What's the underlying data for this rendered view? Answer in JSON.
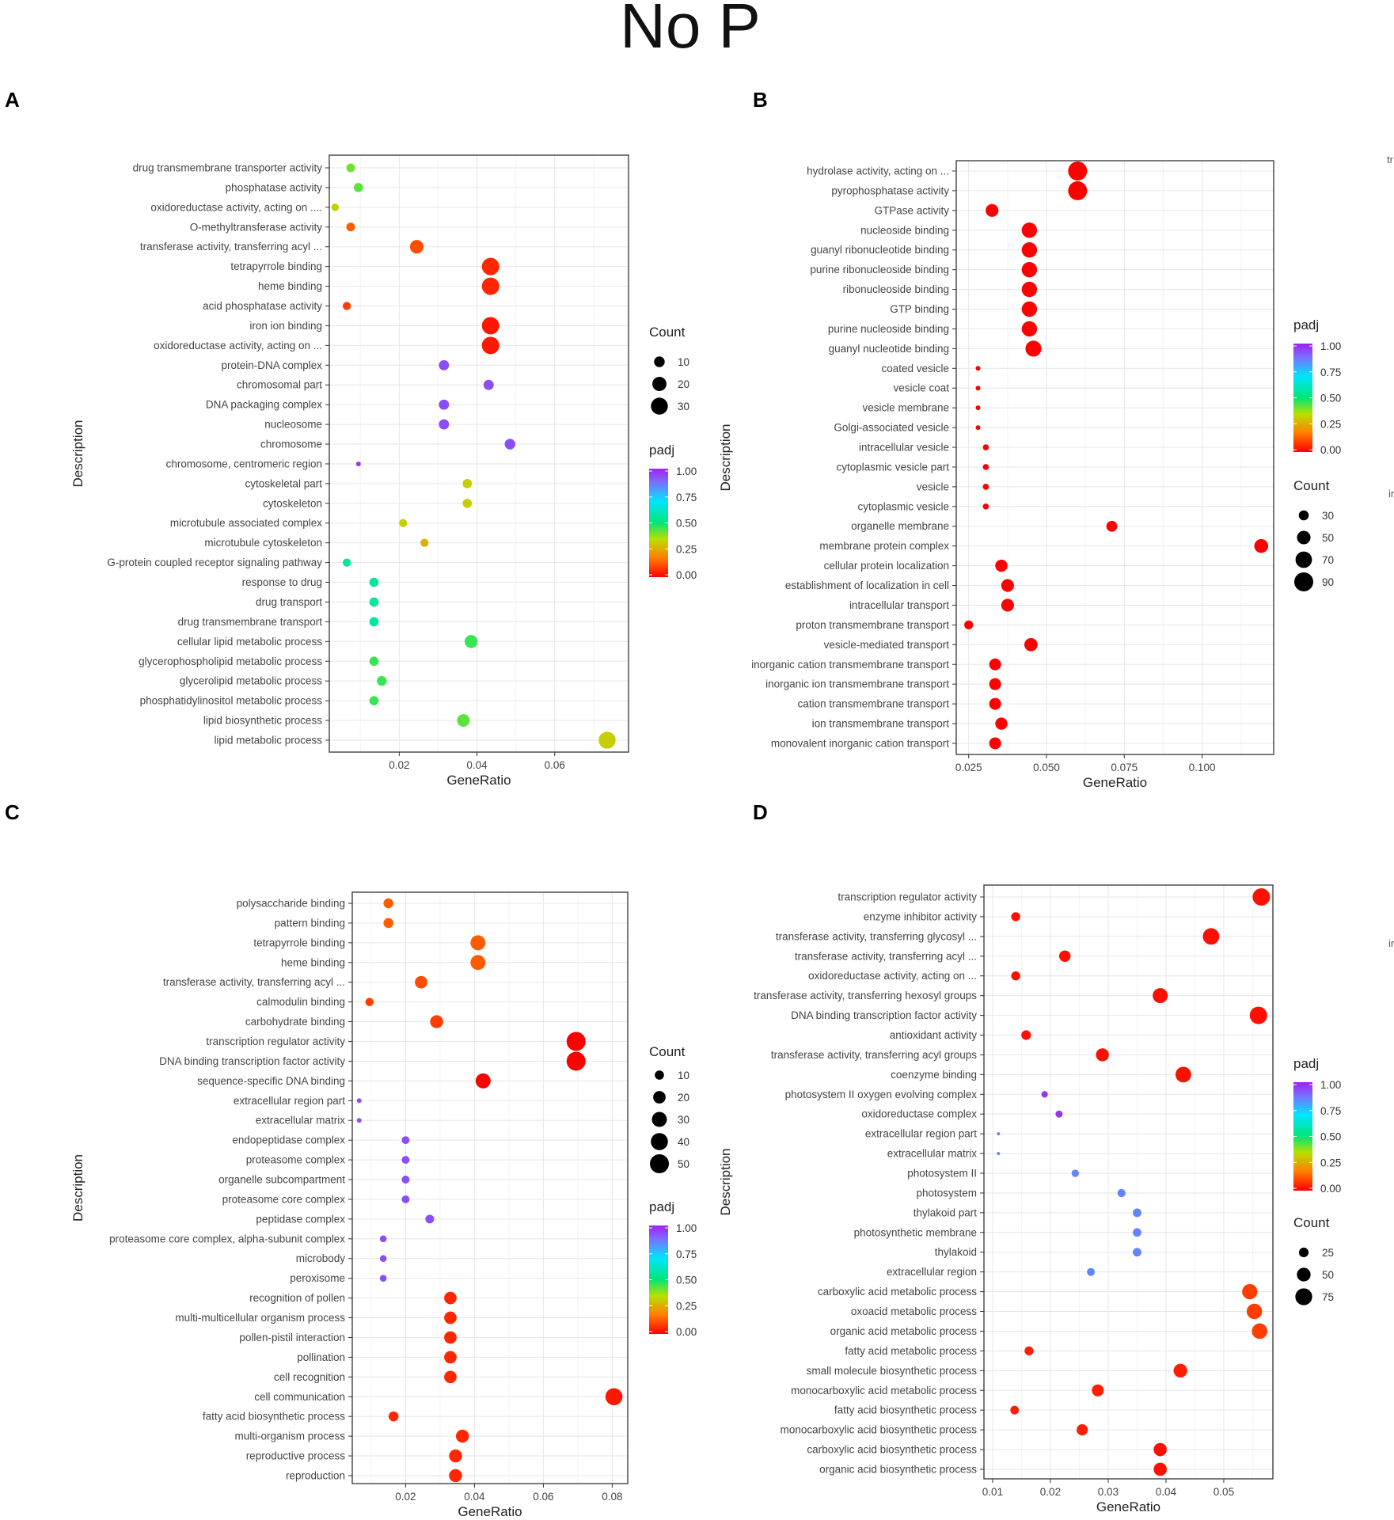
{
  "figure_title": "No P",
  "colors": {
    "scale": [
      "#ff0000",
      "#ff8000",
      "#b8e000",
      "#00e676",
      "#00e5ff",
      "#7c6cff",
      "#a020f0"
    ]
  },
  "clipped_text": [
    "tr",
    "ir",
    "ir"
  ],
  "chart_data": [
    {
      "panel": "A",
      "type": "scatter",
      "xlabel": "GeneRatio",
      "ylabel": "Description",
      "xlim": [
        0.002,
        0.079
      ],
      "xticks": [
        0.02,
        0.04,
        0.06
      ],
      "xtick_labels": [
        "0.02",
        "0.04",
        "0.06"
      ],
      "size_legend": {
        "title": "Count",
        "values": [
          10,
          20,
          30
        ],
        "labels": [
          "10",
          "20",
          "30"
        ]
      },
      "color_legend": {
        "title": "padj",
        "labels": [
          "1.00",
          "0.75",
          "0.50",
          "0.25",
          "0.00"
        ]
      },
      "points": [
        {
          "term": "drug transmembrane transporter activity",
          "x": 0.0075,
          "count": 6,
          "padj": 0.4
        },
        {
          "term": "phosphatase activity",
          "x": 0.0095,
          "count": 7,
          "padj": 0.42
        },
        {
          "term": "oxidoreductase activity, acting on ....",
          "x": 0.0035,
          "count": 4,
          "padj": 0.3
        },
        {
          "term": "O-methyltransferase activity",
          "x": 0.0075,
          "count": 6,
          "padj": 0.12
        },
        {
          "term": "transferase activity, transferring acyl ...",
          "x": 0.0245,
          "count": 18,
          "padj": 0.1
        },
        {
          "term": "tetrapyrrole binding",
          "x": 0.0435,
          "count": 32,
          "padj": 0.05
        },
        {
          "term": "heme binding",
          "x": 0.0435,
          "count": 32,
          "padj": 0.05
        },
        {
          "term": "acid phosphatase activity",
          "x": 0.0065,
          "count": 5,
          "padj": 0.08
        },
        {
          "term": "iron ion binding",
          "x": 0.0435,
          "count": 32,
          "padj": 0.03
        },
        {
          "term": "oxidoreductase activity, acting on ...",
          "x": 0.0435,
          "count": 32,
          "padj": 0.03
        },
        {
          "term": "protein-DNA complex",
          "x": 0.0315,
          "count": 9,
          "padj": 0.9
        },
        {
          "term": "chromosomal part",
          "x": 0.043,
          "count": 9,
          "padj": 0.9
        },
        {
          "term": "DNA packaging complex",
          "x": 0.0315,
          "count": 9,
          "padj": 0.9
        },
        {
          "term": "nucleosome",
          "x": 0.0315,
          "count": 9,
          "padj": 0.9
        },
        {
          "term": "chromosome",
          "x": 0.0485,
          "count": 10,
          "padj": 0.9
        },
        {
          "term": "chromosome, centromeric region",
          "x": 0.0095,
          "count": 1,
          "padj": 0.95
        },
        {
          "term": "cytoskeletal part",
          "x": 0.0375,
          "count": 7,
          "padj": 0.3
        },
        {
          "term": "cytoskeleton",
          "x": 0.0375,
          "count": 7,
          "padj": 0.3
        },
        {
          "term": "microtubule associated complex",
          "x": 0.021,
          "count": 5,
          "padj": 0.3
        },
        {
          "term": "microtubule cytoskeleton",
          "x": 0.0265,
          "count": 5,
          "padj": 0.25
        },
        {
          "term": "G-protein coupled receptor signaling pathway",
          "x": 0.0065,
          "count": 5,
          "padj": 0.55
        },
        {
          "term": "response to drug",
          "x": 0.0135,
          "count": 7,
          "padj": 0.55
        },
        {
          "term": "drug transport",
          "x": 0.0135,
          "count": 7,
          "padj": 0.55
        },
        {
          "term": "drug transmembrane transport",
          "x": 0.0135,
          "count": 7,
          "padj": 0.55
        },
        {
          "term": "cellular lipid metabolic process",
          "x": 0.0385,
          "count": 16,
          "padj": 0.45
        },
        {
          "term": "glycerophospholipid metabolic process",
          "x": 0.0135,
          "count": 7,
          "padj": 0.45
        },
        {
          "term": "glycerolipid metabolic process",
          "x": 0.0155,
          "count": 8,
          "padj": 0.45
        },
        {
          "term": "phosphatidylinositol metabolic process",
          "x": 0.0135,
          "count": 7,
          "padj": 0.45
        },
        {
          "term": "lipid biosynthetic process",
          "x": 0.0365,
          "count": 15,
          "padj": 0.42
        },
        {
          "term": "lipid metabolic process",
          "x": 0.0735,
          "count": 30,
          "padj": 0.3
        }
      ]
    },
    {
      "panel": "B",
      "type": "scatter",
      "xlabel": "GeneRatio",
      "ylabel": "Description",
      "xlim": [
        0.021,
        0.123
      ],
      "xticks": [
        0.025,
        0.05,
        0.075,
        0.1
      ],
      "xtick_labels": [
        "0.025",
        "0.050",
        "0.075",
        "0.100"
      ],
      "color_legend": {
        "title": "padj",
        "labels": [
          "1.00",
          "0.75",
          "0.50",
          "0.25",
          "0.00"
        ]
      },
      "size_legend": {
        "title": "Count",
        "values": [
          30,
          50,
          70,
          90
        ],
        "labels": [
          "30",
          "50",
          "70",
          "90"
        ]
      },
      "points": [
        {
          "term": "hydrolase activity, acting on ...",
          "x": 0.06,
          "count": 90,
          "padj": 0.0
        },
        {
          "term": "pyrophosphatase activity",
          "x": 0.06,
          "count": 90,
          "padj": 0.0
        },
        {
          "term": "GTPase activity",
          "x": 0.0325,
          "count": 45,
          "padj": 0.0
        },
        {
          "term": "nucleoside binding",
          "x": 0.0445,
          "count": 62,
          "padj": 0.0
        },
        {
          "term": "guanyl ribonucleotide binding",
          "x": 0.0445,
          "count": 62,
          "padj": 0.0
        },
        {
          "term": "purine ribonucleoside binding",
          "x": 0.0445,
          "count": 62,
          "padj": 0.0
        },
        {
          "term": "ribonucleoside binding",
          "x": 0.0445,
          "count": 62,
          "padj": 0.0
        },
        {
          "term": "GTP binding",
          "x": 0.0445,
          "count": 62,
          "padj": 0.0
        },
        {
          "term": "purine nucleoside binding",
          "x": 0.0445,
          "count": 62,
          "padj": 0.0
        },
        {
          "term": "guanyl nucleotide binding",
          "x": 0.0458,
          "count": 66,
          "padj": 0.0
        },
        {
          "term": "coated vesicle",
          "x": 0.028,
          "count": 10,
          "padj": 0.0
        },
        {
          "term": "vesicle coat",
          "x": 0.028,
          "count": 10,
          "padj": 0.0
        },
        {
          "term": "vesicle membrane",
          "x": 0.028,
          "count": 10,
          "padj": 0.0
        },
        {
          "term": "Golgi-associated vesicle",
          "x": 0.028,
          "count": 10,
          "padj": 0.0
        },
        {
          "term": "intracellular vesicle",
          "x": 0.0305,
          "count": 14,
          "padj": 0.0
        },
        {
          "term": "cytoplasmic vesicle part",
          "x": 0.0305,
          "count": 14,
          "padj": 0.0
        },
        {
          "term": "vesicle",
          "x": 0.0305,
          "count": 14,
          "padj": 0.0
        },
        {
          "term": "cytoplasmic vesicle",
          "x": 0.0305,
          "count": 14,
          "padj": 0.0
        },
        {
          "term": "organelle membrane",
          "x": 0.071,
          "count": 35,
          "padj": 0.0
        },
        {
          "term": "membrane protein complex",
          "x": 0.119,
          "count": 52,
          "padj": 0.0
        },
        {
          "term": "cellular protein localization",
          "x": 0.0355,
          "count": 42,
          "padj": 0.0
        },
        {
          "term": "establishment of localization in cell",
          "x": 0.0375,
          "count": 45,
          "padj": 0.0
        },
        {
          "term": "intracellular transport",
          "x": 0.0375,
          "count": 45,
          "padj": 0.0
        },
        {
          "term": "proton transmembrane transport",
          "x": 0.025,
          "count": 25,
          "padj": 0.0
        },
        {
          "term": "vesicle-mediated transport",
          "x": 0.045,
          "count": 48,
          "padj": 0.0
        },
        {
          "term": "inorganic cation transmembrane transport",
          "x": 0.0335,
          "count": 40,
          "padj": 0.0
        },
        {
          "term": "inorganic ion transmembrane transport",
          "x": 0.0335,
          "count": 40,
          "padj": 0.0
        },
        {
          "term": "cation transmembrane transport",
          "x": 0.0335,
          "count": 40,
          "padj": 0.0
        },
        {
          "term": "ion transmembrane transport",
          "x": 0.0355,
          "count": 42,
          "padj": 0.0
        },
        {
          "term": "monovalent inorganic cation transport",
          "x": 0.0335,
          "count": 40,
          "padj": 0.0
        }
      ]
    },
    {
      "panel": "C",
      "type": "scatter",
      "xlabel": "GeneRatio",
      "ylabel": "Description",
      "xlim": [
        0.0045,
        0.0845
      ],
      "xticks": [
        0.02,
        0.04,
        0.06,
        0.08
      ],
      "xtick_labels": [
        "0.02",
        "0.04",
        "0.06",
        "0.08"
      ],
      "size_legend": {
        "title": "Count",
        "values": [
          10,
          20,
          30,
          40,
          50
        ],
        "labels": [
          "10",
          "20",
          "30",
          "40",
          "50"
        ]
      },
      "color_legend": {
        "title": "padj",
        "labels": [
          "1.00",
          "0.75",
          "0.50",
          "0.25",
          "0.00"
        ]
      },
      "points": [
        {
          "term": "polysaccharide binding",
          "x": 0.015,
          "count": 12,
          "padj": 0.12
        },
        {
          "term": "pattern binding",
          "x": 0.015,
          "count": 12,
          "padj": 0.12
        },
        {
          "term": "tetrapyrrole binding",
          "x": 0.041,
          "count": 30,
          "padj": 0.12
        },
        {
          "term": "heme binding",
          "x": 0.041,
          "count": 30,
          "padj": 0.12
        },
        {
          "term": "transferase activity, transferring acyl ...",
          "x": 0.0245,
          "count": 20,
          "padj": 0.1
        },
        {
          "term": "calmodulin binding",
          "x": 0.0095,
          "count": 8,
          "padj": 0.08
        },
        {
          "term": "carbohydrate binding",
          "x": 0.029,
          "count": 22,
          "padj": 0.08
        },
        {
          "term": "transcription regulator activity",
          "x": 0.0695,
          "count": 50,
          "padj": 0.0
        },
        {
          "term": "DNA binding transcription factor activity",
          "x": 0.0695,
          "count": 50,
          "padj": 0.0
        },
        {
          "term": "sequence-specific DNA binding",
          "x": 0.0425,
          "count": 30,
          "padj": 0.0
        },
        {
          "term": "extracellular region part",
          "x": 0.0065,
          "count": 2,
          "padj": 0.9
        },
        {
          "term": "extracellular matrix",
          "x": 0.0065,
          "count": 2,
          "padj": 0.9
        },
        {
          "term": "endopeptidase complex",
          "x": 0.02,
          "count": 7,
          "padj": 0.9
        },
        {
          "term": "proteasome complex",
          "x": 0.02,
          "count": 7,
          "padj": 0.9
        },
        {
          "term": "organelle subcompartment",
          "x": 0.02,
          "count": 7,
          "padj": 0.9
        },
        {
          "term": "proteasome core complex",
          "x": 0.02,
          "count": 7,
          "padj": 0.9
        },
        {
          "term": "peptidase complex",
          "x": 0.027,
          "count": 9,
          "padj": 0.9
        },
        {
          "term": "proteasome core complex, alpha-subunit complex",
          "x": 0.0135,
          "count": 5,
          "padj": 0.9
        },
        {
          "term": "microbody",
          "x": 0.0135,
          "count": 5,
          "padj": 0.9
        },
        {
          "term": "peroxisome",
          "x": 0.0135,
          "count": 5,
          "padj": 0.9
        },
        {
          "term": "recognition of pollen",
          "x": 0.033,
          "count": 20,
          "padj": 0.05
        },
        {
          "term": "multi-multicellular organism process",
          "x": 0.033,
          "count": 20,
          "padj": 0.05
        },
        {
          "term": "pollen-pistil interaction",
          "x": 0.033,
          "count": 20,
          "padj": 0.05
        },
        {
          "term": "pollination",
          "x": 0.033,
          "count": 20,
          "padj": 0.05
        },
        {
          "term": "cell recognition",
          "x": 0.033,
          "count": 20,
          "padj": 0.05
        },
        {
          "term": "cell communication",
          "x": 0.0805,
          "count": 40,
          "padj": 0.03
        },
        {
          "term": "fatty acid biosynthetic process",
          "x": 0.0165,
          "count": 12,
          "padj": 0.05
        },
        {
          "term": "multi-organism process",
          "x": 0.0365,
          "count": 22,
          "padj": 0.05
        },
        {
          "term": "reproductive process",
          "x": 0.0345,
          "count": 22,
          "padj": 0.05
        },
        {
          "term": "reproduction",
          "x": 0.0345,
          "count": 22,
          "padj": 0.05
        }
      ]
    },
    {
      "panel": "D",
      "type": "scatter",
      "xlabel": "GeneRatio",
      "ylabel": "Description",
      "xlim": [
        0.0085,
        0.0585
      ],
      "xticks": [
        0.01,
        0.02,
        0.03,
        0.04,
        0.05
      ],
      "xtick_labels": [
        "0.01",
        "0.02",
        "0.03",
        "0.04",
        "0.05"
      ],
      "color_legend": {
        "title": "padj",
        "labels": [
          "1.00",
          "0.75",
          "0.50",
          "0.25",
          "0.00"
        ]
      },
      "size_legend": {
        "title": "Count",
        "values": [
          25,
          50,
          75
        ],
        "labels": [
          "25",
          "50",
          "75"
        ]
      },
      "points": [
        {
          "term": "transcription regulator activity",
          "x": 0.0565,
          "count": 80,
          "padj": 0.02
        },
        {
          "term": "enzyme inhibitor activity",
          "x": 0.014,
          "count": 22,
          "padj": 0.02
        },
        {
          "term": "transferase activity, transferring glycosyl ...",
          "x": 0.0478,
          "count": 72,
          "padj": 0.02
        },
        {
          "term": "transferase activity, transferring acyl ...",
          "x": 0.0225,
          "count": 35,
          "padj": 0.02
        },
        {
          "term": "oxidoreductase activity, acting on ...",
          "x": 0.014,
          "count": 22,
          "padj": 0.02
        },
        {
          "term": "transferase activity, transferring hexosyl groups",
          "x": 0.039,
          "count": 60,
          "padj": 0.02
        },
        {
          "term": "DNA binding transcription factor activity",
          "x": 0.056,
          "count": 80,
          "padj": 0.02
        },
        {
          "term": "antioxidant activity",
          "x": 0.0158,
          "count": 25,
          "padj": 0.02
        },
        {
          "term": "transferase activity, transferring acyl groups",
          "x": 0.029,
          "count": 45,
          "padj": 0.02
        },
        {
          "term": "coenzyme binding",
          "x": 0.043,
          "count": 65,
          "padj": 0.02
        },
        {
          "term": "photosystem II oxygen evolving complex",
          "x": 0.019,
          "count": 12,
          "padj": 0.95
        },
        {
          "term": "oxidoreductase complex",
          "x": 0.0215,
          "count": 14,
          "padj": 0.95
        },
        {
          "term": "extracellular region part",
          "x": 0.011,
          "count": 3,
          "padj": 0.8
        },
        {
          "term": "extracellular matrix",
          "x": 0.011,
          "count": 3,
          "padj": 0.8
        },
        {
          "term": "photosystem II",
          "x": 0.0243,
          "count": 15,
          "padj": 0.8
        },
        {
          "term": "photosystem",
          "x": 0.0323,
          "count": 18,
          "padj": 0.8
        },
        {
          "term": "thylakoid part",
          "x": 0.035,
          "count": 20,
          "padj": 0.8
        },
        {
          "term": "photosynthetic membrane",
          "x": 0.035,
          "count": 20,
          "padj": 0.8
        },
        {
          "term": "thylakoid",
          "x": 0.035,
          "count": 20,
          "padj": 0.8
        },
        {
          "term": "extracellular region",
          "x": 0.027,
          "count": 17,
          "padj": 0.8
        },
        {
          "term": "carboxylic acid metabolic process",
          "x": 0.0545,
          "count": 62,
          "padj": 0.08
        },
        {
          "term": "oxoacid metabolic process",
          "x": 0.0553,
          "count": 63,
          "padj": 0.08
        },
        {
          "term": "organic acid metabolic process",
          "x": 0.0562,
          "count": 64,
          "padj": 0.08
        },
        {
          "term": "fatty acid metabolic process",
          "x": 0.0163,
          "count": 22,
          "padj": 0.04
        },
        {
          "term": "small molecule biosynthetic process",
          "x": 0.0425,
          "count": 50,
          "padj": 0.04
        },
        {
          "term": "monocarboxylic acid metabolic process",
          "x": 0.0282,
          "count": 38,
          "padj": 0.04
        },
        {
          "term": "fatty acid biosynthetic process",
          "x": 0.0138,
          "count": 20,
          "padj": 0.04
        },
        {
          "term": "monocarboxylic acid biosynthetic process",
          "x": 0.0255,
          "count": 34,
          "padj": 0.04
        },
        {
          "term": "carboxylic acid biosynthetic process",
          "x": 0.039,
          "count": 46,
          "padj": 0.02
        },
        {
          "term": "organic acid biosynthetic process",
          "x": 0.039,
          "count": 46,
          "padj": 0.02
        }
      ]
    }
  ]
}
